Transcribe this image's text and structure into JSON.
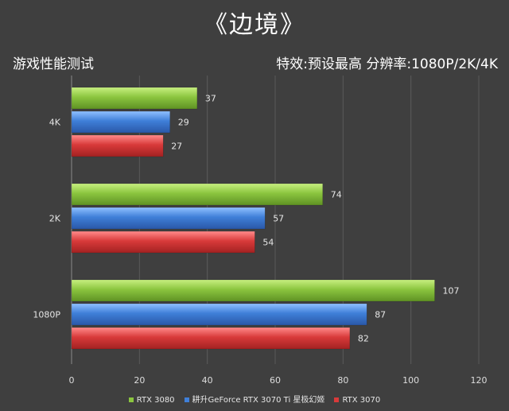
{
  "title": "《边境》",
  "subtitle_left": "游戏性能测试",
  "subtitle_right": "特效:预设最高  分辨率:1080P/2K/4K",
  "chart_data": {
    "type": "bar",
    "orientation": "horizontal",
    "categories": [
      "4K",
      "2K",
      "1080P"
    ],
    "series": [
      {
        "name": "RTX 3080",
        "color": "#8bc53f",
        "values": [
          37,
          74,
          107
        ]
      },
      {
        "name": "耕升GeForce RTX 3070 Ti 星极幻姬",
        "color": "#3f7fd8",
        "values": [
          29,
          57,
          87
        ]
      },
      {
        "name": "RTX 3070",
        "color": "#d83a3a",
        "values": [
          27,
          54,
          82
        ]
      }
    ],
    "xlim": [
      0,
      120
    ],
    "xticks": [
      "0",
      "20",
      "40",
      "60",
      "80",
      "100",
      "120"
    ],
    "grid": true,
    "legend_position": "bottom"
  }
}
